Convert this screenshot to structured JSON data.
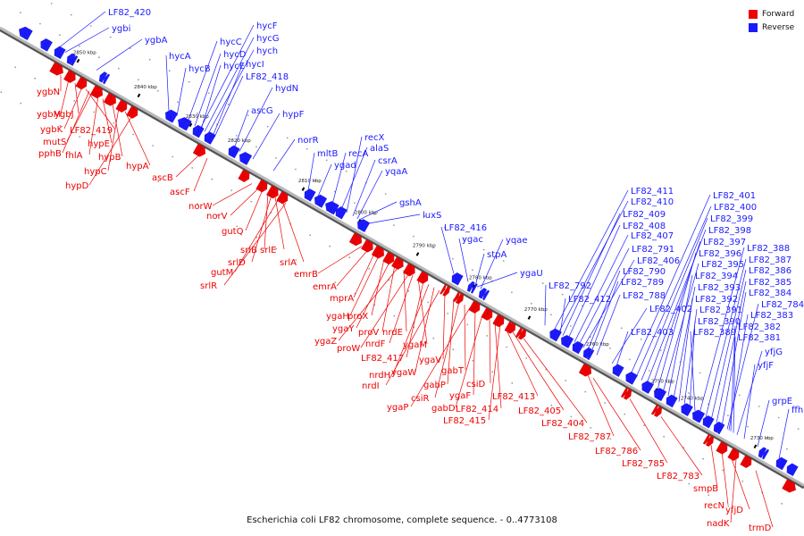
{
  "caption": "Escherichia coli LF82 chromosome, complete sequence. - 0..4773108",
  "legend": [
    {
      "label": "Forward",
      "color": "#ee0000"
    },
    {
      "label": "Reverse",
      "color": "#1a1aff"
    }
  ],
  "colors": {
    "forward": "#ee0000",
    "reverse": "#1a1aff",
    "backbone": "#7a7a7a"
  },
  "ticks": [
    "2850 kbp",
    "2840 kbp",
    "2830 kbp",
    "2820 kbp",
    "2810 kbp",
    "2800 kbp",
    "2790 kbp",
    "2780 kbp",
    "2770 kbp",
    "2760 kbp",
    "2750 kbp",
    "2740 kbp",
    "2730 kbp"
  ],
  "reverse_genes": [
    "LF82_420",
    "ygbi",
    "ygbA",
    "hycA",
    "hycB",
    "hycC",
    "hycD",
    "hycE",
    "hycF",
    "hycG",
    "hych",
    "hycI",
    "LF82_418",
    "hydN",
    "ascG",
    "hypF",
    "norR",
    "mltB",
    "ygad",
    "recA",
    "recX",
    "alaS",
    "csrA",
    "yqaA",
    "gshA",
    "luxS",
    "LF82_416",
    "ygac",
    "stpA",
    "yqae",
    "ygaU",
    "LF82_792",
    "LF82_412",
    "LF82_411",
    "LF82_410",
    "LF82_409",
    "LF82_408",
    "LF82_407",
    "LF82_791",
    "LF82_406",
    "LF82_790",
    "LF82_789",
    "LF82_788",
    "LF82_402",
    "LF82_403",
    "LF82_401",
    "LF82_400",
    "LF82_399",
    "LF82_398",
    "LF82_397",
    "LF82_396",
    "LF82_395",
    "LF82_394",
    "LF82_393",
    "LF82_392",
    "LF82_391",
    "LF82_390",
    "LF82_389",
    "LF82_388",
    "LF82_387",
    "LF82_386",
    "LF82_385",
    "LF82_384",
    "LF82_784",
    "LF82_383",
    "LF82_382",
    "LF82_381",
    "yfjG",
    "yfjF",
    "grpE",
    "ffh"
  ],
  "forward_genes": [
    "ygbN",
    "ygbM",
    "ygbJ",
    "ygbK",
    "LF82_419",
    "mutS",
    "fhlA",
    "pphB",
    "hypE",
    "hypB",
    "hypC",
    "hypA",
    "hypD",
    "ascB",
    "ascF",
    "norW",
    "norV",
    "gutQ",
    "srlB",
    "srlD",
    "srlE",
    "gutM",
    "srlA",
    "srlR",
    "emrB",
    "emrA",
    "mprA",
    "ygaH",
    "proX",
    "ygaY",
    "proV",
    "ygaZ",
    "nrdE",
    "proW",
    "nrdF",
    "ygaM",
    "LF82_417",
    "nrdH",
    "ygaW",
    "nrdI",
    "ygaV",
    "gabP",
    "csiR",
    "gabT",
    "ygaP",
    "ygaF",
    "gabD",
    "csiD",
    "LF82_414",
    "LF82_415",
    "LF82_413",
    "LF82_405",
    "LF82_404",
    "LF82_787",
    "LF82_786",
    "LF82_785",
    "LF82_783",
    "smpB",
    "recN",
    "yfjD",
    "nadK",
    "trmD"
  ]
}
